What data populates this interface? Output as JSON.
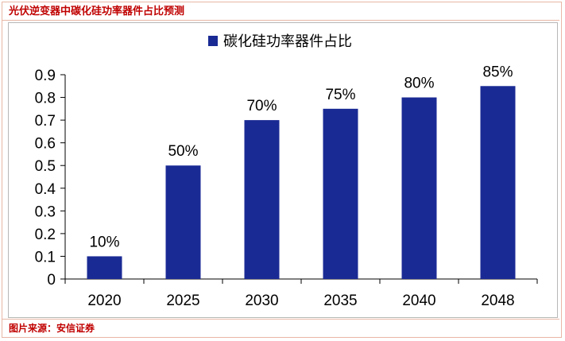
{
  "header": {
    "title": "光伏逆变器中碳化硅功率器件占比预测"
  },
  "footer": {
    "source": "图片来源：安信证券"
  },
  "colors": {
    "bar": "#1a2a94",
    "accent": "#c00000",
    "frame": "#e8b7a6"
  },
  "chart_data": {
    "type": "bar",
    "categories": [
      "2020",
      "2025",
      "2030",
      "2035",
      "2040",
      "2048"
    ],
    "series": [
      {
        "name": "碳化硅功率器件占比",
        "values": [
          0.1,
          0.5,
          0.7,
          0.75,
          0.8,
          0.85
        ]
      }
    ],
    "data_labels": [
      "10%",
      "50%",
      "70%",
      "75%",
      "80%",
      "85%"
    ],
    "ylim": [
      0,
      0.9
    ],
    "yticks": [
      0,
      0.1,
      0.2,
      0.3,
      0.4,
      0.5,
      0.6,
      0.7,
      0.8,
      0.9
    ],
    "ytick_labels": [
      "0",
      "0.1",
      "0.2",
      "0.3",
      "0.4",
      "0.5",
      "0.6",
      "0.7",
      "0.8",
      "0.9"
    ],
    "legend_position": "top-center",
    "grid": false
  }
}
